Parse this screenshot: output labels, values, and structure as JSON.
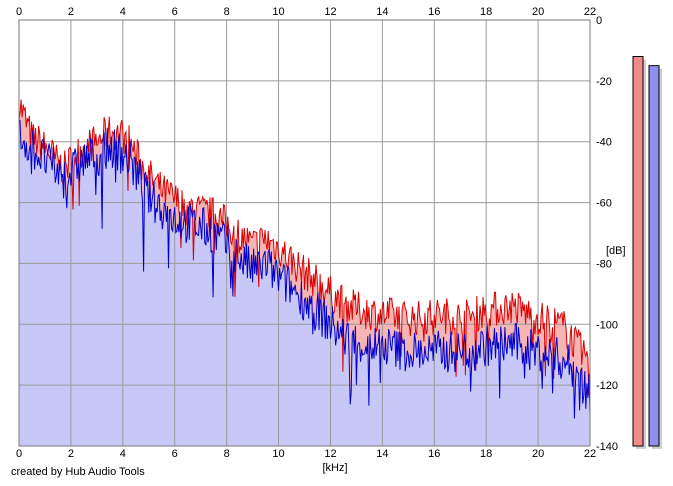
{
  "footer": {
    "credit": "created by Hub Audio Tools"
  },
  "chart_data": {
    "type": "area",
    "title": "",
    "xlabel": "[kHz]",
    "ylabel": "[dB]",
    "xlim": [
      0,
      22
    ],
    "ylim": [
      -140,
      0
    ],
    "x_ticks": [
      0,
      2,
      4,
      6,
      8,
      10,
      12,
      14,
      16,
      18,
      20,
      22
    ],
    "y_ticks": [
      0,
      -20,
      -40,
      -60,
      -80,
      -100,
      -120,
      -140
    ],
    "grid": true,
    "colors": {
      "red": "#dd0000",
      "blue": "#0000cc",
      "red_fill": "#f5b5b5",
      "blue_fill": "#c8c8f8",
      "red_meter": "#f28a8a",
      "blue_meter": "#8f8ff0"
    },
    "series": [
      {
        "name": "",
        "color": "red",
        "x": [
          0,
          0.25,
          0.5,
          0.75,
          1,
          1.25,
          1.5,
          1.75,
          2,
          2.25,
          2.5,
          2.75,
          3,
          3.25,
          3.5,
          3.75,
          4,
          4.25,
          4.5,
          4.75,
          5,
          5.5,
          6,
          6.5,
          7,
          7.5,
          8,
          8.5,
          9,
          9.5,
          10,
          10.5,
          11,
          11.5,
          12,
          12.5,
          13,
          13.5,
          14,
          14.5,
          15,
          15.5,
          16,
          16.5,
          17,
          17.5,
          18,
          18.5,
          19,
          19.5,
          20,
          20.5,
          21,
          21.5,
          22
        ],
        "values": [
          -27,
          -33,
          -39,
          -40,
          -42,
          -44,
          -47,
          -49,
          -46,
          -44,
          -42,
          -41,
          -40,
          -38,
          -37,
          -37,
          -38,
          -40,
          -44,
          -48,
          -51,
          -56,
          -59,
          -62,
          -63,
          -64,
          -67,
          -71,
          -74,
          -72,
          -75,
          -79,
          -83,
          -86,
          -90,
          -93,
          -95,
          -96,
          -97,
          -97,
          -98,
          -98,
          -97,
          -97,
          -98,
          -97,
          -95,
          -95,
          -94,
          -96,
          -98,
          -99,
          -101,
          -107,
          -112
        ]
      },
      {
        "name": "",
        "color": "blue",
        "x": [
          0,
          0.25,
          0.5,
          0.75,
          1,
          1.25,
          1.5,
          1.75,
          2,
          2.25,
          2.5,
          2.75,
          3,
          3.25,
          3.5,
          3.75,
          4,
          4.25,
          4.5,
          4.75,
          5,
          5.5,
          6,
          6.5,
          7,
          7.5,
          8,
          8.5,
          9,
          9.5,
          10,
          10.5,
          11,
          11.5,
          12,
          12.5,
          13,
          13.5,
          14,
          14.5,
          15,
          15.5,
          16,
          16.5,
          17,
          17.5,
          18,
          18.5,
          19,
          19.5,
          20,
          20.5,
          21,
          21.5,
          22
        ],
        "values": [
          -38,
          -40,
          -42,
          -44,
          -46,
          -48,
          -50,
          -52,
          -50,
          -48,
          -46,
          -45,
          -44,
          -43,
          -42,
          -42,
          -44,
          -46,
          -50,
          -54,
          -58,
          -62,
          -65,
          -67,
          -68,
          -70,
          -74,
          -78,
          -82,
          -80,
          -85,
          -88,
          -92,
          -96,
          -100,
          -104,
          -106,
          -107,
          -107,
          -108,
          -109,
          -109,
          -109,
          -109,
          -109,
          -108,
          -107,
          -107,
          -106,
          -108,
          -109,
          -110,
          -112,
          -116,
          -124
        ]
      }
    ],
    "level_meters": [
      {
        "color": "red",
        "value": -12
      },
      {
        "color": "blue",
        "value": -15
      }
    ]
  }
}
